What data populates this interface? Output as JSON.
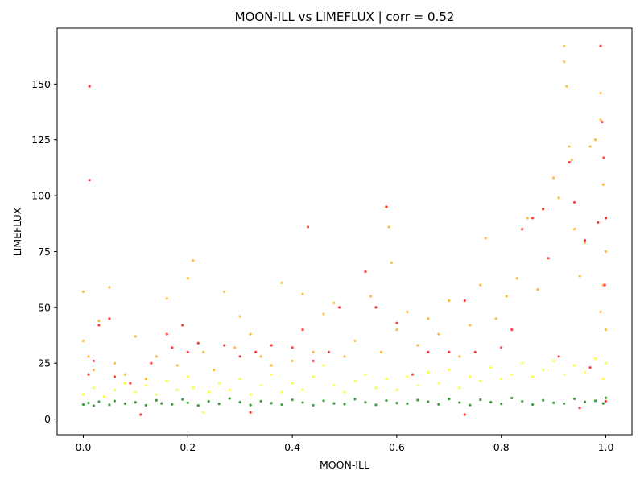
{
  "chart_data": {
    "type": "scatter",
    "title": "MOON-ILL vs LIMEFLUX | corr = 0.52",
    "xlabel": "MOON-ILL",
    "ylabel": "LIMEFLUX",
    "xlim": [
      -0.05,
      1.05
    ],
    "ylim": [
      -7,
      175
    ],
    "xticks": [
      0.0,
      0.2,
      0.4,
      0.6,
      0.8,
      1.0
    ],
    "xtick_labels": [
      "0.0",
      "0.2",
      "0.4",
      "0.6",
      "0.8",
      "1.0"
    ],
    "yticks": [
      0,
      25,
      50,
      75,
      100,
      125,
      150
    ],
    "ytick_labels": [
      "0",
      "25",
      "50",
      "75",
      "100",
      "125",
      "150"
    ],
    "grid": false,
    "legend": "none",
    "series": [
      {
        "color": "#008000",
        "points": [
          [
            0.0,
            6.5
          ],
          [
            0.01,
            7.2
          ],
          [
            0.02,
            6.0
          ],
          [
            0.03,
            7.8
          ],
          [
            0.05,
            6.4
          ],
          [
            0.06,
            8.1
          ],
          [
            0.08,
            6.9
          ],
          [
            0.1,
            7.5
          ],
          [
            0.12,
            6.2
          ],
          [
            0.14,
            8.4
          ],
          [
            0.15,
            7.0
          ],
          [
            0.17,
            6.6
          ],
          [
            0.19,
            8.8
          ],
          [
            0.2,
            7.3
          ],
          [
            0.22,
            6.1
          ],
          [
            0.24,
            7.9
          ],
          [
            0.26,
            6.8
          ],
          [
            0.28,
            9.2
          ],
          [
            0.3,
            7.6
          ],
          [
            0.32,
            6.3
          ],
          [
            0.34,
            8.0
          ],
          [
            0.36,
            7.1
          ],
          [
            0.38,
            6.5
          ],
          [
            0.4,
            8.6
          ],
          [
            0.42,
            7.4
          ],
          [
            0.44,
            6.2
          ],
          [
            0.46,
            8.2
          ],
          [
            0.48,
            7.0
          ],
          [
            0.5,
            6.7
          ],
          [
            0.52,
            8.9
          ],
          [
            0.54,
            7.5
          ],
          [
            0.56,
            6.4
          ],
          [
            0.58,
            8.3
          ],
          [
            0.6,
            7.2
          ],
          [
            0.62,
            6.9
          ],
          [
            0.64,
            8.5
          ],
          [
            0.66,
            7.8
          ],
          [
            0.68,
            6.6
          ],
          [
            0.7,
            9.0
          ],
          [
            0.72,
            7.4
          ],
          [
            0.74,
            6.3
          ],
          [
            0.76,
            8.7
          ],
          [
            0.78,
            7.6
          ],
          [
            0.8,
            6.8
          ],
          [
            0.82,
            9.4
          ],
          [
            0.84,
            7.9
          ],
          [
            0.86,
            6.5
          ],
          [
            0.88,
            8.4
          ],
          [
            0.9,
            7.3
          ],
          [
            0.92,
            6.9
          ],
          [
            0.94,
            9.1
          ],
          [
            0.96,
            7.7
          ],
          [
            0.98,
            8.2
          ],
          [
            1.0,
            9.5
          ],
          [
            0.995,
            7.0
          ]
        ]
      },
      {
        "color": "#ffff00",
        "points": [
          [
            0.0,
            11
          ],
          [
            0.02,
            14
          ],
          [
            0.04,
            10
          ],
          [
            0.06,
            13
          ],
          [
            0.08,
            16
          ],
          [
            0.1,
            12
          ],
          [
            0.12,
            15
          ],
          [
            0.14,
            11
          ],
          [
            0.16,
            17
          ],
          [
            0.18,
            13
          ],
          [
            0.2,
            19
          ],
          [
            0.21,
            14
          ],
          [
            0.23,
            3
          ],
          [
            0.24,
            12
          ],
          [
            0.26,
            16
          ],
          [
            0.28,
            13
          ],
          [
            0.3,
            18
          ],
          [
            0.32,
            11
          ],
          [
            0.34,
            15
          ],
          [
            0.36,
            20
          ],
          [
            0.38,
            12
          ],
          [
            0.4,
            16
          ],
          [
            0.42,
            13
          ],
          [
            0.44,
            19
          ],
          [
            0.46,
            24
          ],
          [
            0.48,
            15
          ],
          [
            0.5,
            12
          ],
          [
            0.52,
            17
          ],
          [
            0.54,
            20
          ],
          [
            0.56,
            14
          ],
          [
            0.58,
            18
          ],
          [
            0.6,
            13
          ],
          [
            0.62,
            19
          ],
          [
            0.64,
            15
          ],
          [
            0.66,
            21
          ],
          [
            0.68,
            16
          ],
          [
            0.7,
            22
          ],
          [
            0.72,
            14
          ],
          [
            0.74,
            19
          ],
          [
            0.76,
            17
          ],
          [
            0.78,
            23
          ],
          [
            0.8,
            18
          ],
          [
            0.82,
            20
          ],
          [
            0.84,
            25
          ],
          [
            0.86,
            19
          ],
          [
            0.88,
            22
          ],
          [
            0.9,
            26
          ],
          [
            0.92,
            20
          ],
          [
            0.94,
            24
          ],
          [
            0.96,
            21
          ],
          [
            0.98,
            27
          ],
          [
            1.0,
            25
          ],
          [
            0.995,
            18
          ]
        ]
      },
      {
        "color": "#ffa500",
        "points": [
          [
            0.0,
            57
          ],
          [
            0.0,
            35
          ],
          [
            0.01,
            28
          ],
          [
            0.02,
            22
          ],
          [
            0.03,
            44
          ],
          [
            0.05,
            59
          ],
          [
            0.06,
            25
          ],
          [
            0.08,
            20
          ],
          [
            0.1,
            37
          ],
          [
            0.12,
            18
          ],
          [
            0.14,
            28
          ],
          [
            0.16,
            54
          ],
          [
            0.18,
            24
          ],
          [
            0.2,
            63
          ],
          [
            0.21,
            71
          ],
          [
            0.23,
            30
          ],
          [
            0.25,
            22
          ],
          [
            0.27,
            57
          ],
          [
            0.29,
            32
          ],
          [
            0.3,
            46
          ],
          [
            0.32,
            38
          ],
          [
            0.34,
            28
          ],
          [
            0.36,
            24
          ],
          [
            0.38,
            61
          ],
          [
            0.4,
            26
          ],
          [
            0.42,
            56
          ],
          [
            0.44,
            30
          ],
          [
            0.46,
            47
          ],
          [
            0.48,
            52
          ],
          [
            0.5,
            28
          ],
          [
            0.52,
            35
          ],
          [
            0.55,
            55
          ],
          [
            0.57,
            30
          ],
          [
            0.58,
            95
          ],
          [
            0.585,
            86
          ],
          [
            0.59,
            70
          ],
          [
            0.6,
            40
          ],
          [
            0.62,
            48
          ],
          [
            0.64,
            33
          ],
          [
            0.66,
            45
          ],
          [
            0.68,
            38
          ],
          [
            0.7,
            53
          ],
          [
            0.72,
            28
          ],
          [
            0.74,
            42
          ],
          [
            0.76,
            60
          ],
          [
            0.77,
            81
          ],
          [
            0.79,
            45
          ],
          [
            0.81,
            55
          ],
          [
            0.83,
            63
          ],
          [
            0.85,
            90
          ],
          [
            0.87,
            58
          ],
          [
            0.88,
            94
          ],
          [
            0.9,
            108
          ],
          [
            0.91,
            99
          ],
          [
            0.92,
            167
          ],
          [
            0.92,
            160
          ],
          [
            0.925,
            149
          ],
          [
            0.93,
            122
          ],
          [
            0.935,
            116
          ],
          [
            0.94,
            85
          ],
          [
            0.95,
            64
          ],
          [
            0.96,
            79
          ],
          [
            0.97,
            122
          ],
          [
            0.98,
            125
          ],
          [
            0.99,
            146
          ],
          [
            0.99,
            134
          ],
          [
            0.995,
            105
          ],
          [
            1.0,
            90
          ],
          [
            1.0,
            75
          ],
          [
            0.995,
            60
          ],
          [
            0.99,
            48
          ],
          [
            1.0,
            40
          ]
        ]
      },
      {
        "color": "#ff0000",
        "points": [
          [
            0.012,
            149
          ],
          [
            0.012,
            107
          ],
          [
            0.01,
            20
          ],
          [
            0.02,
            26
          ],
          [
            0.03,
            42
          ],
          [
            0.05,
            45
          ],
          [
            0.06,
            19
          ],
          [
            0.09,
            16
          ],
          [
            0.11,
            2
          ],
          [
            0.13,
            25
          ],
          [
            0.16,
            38
          ],
          [
            0.17,
            32
          ],
          [
            0.19,
            42
          ],
          [
            0.2,
            30
          ],
          [
            0.22,
            34
          ],
          [
            0.27,
            33
          ],
          [
            0.3,
            28
          ],
          [
            0.32,
            3
          ],
          [
            0.33,
            30
          ],
          [
            0.36,
            33
          ],
          [
            0.4,
            32
          ],
          [
            0.42,
            40
          ],
          [
            0.43,
            86
          ],
          [
            0.44,
            26
          ],
          [
            0.47,
            30
          ],
          [
            0.49,
            50
          ],
          [
            0.54,
            66
          ],
          [
            0.56,
            50
          ],
          [
            0.58,
            95
          ],
          [
            0.6,
            43
          ],
          [
            0.63,
            20
          ],
          [
            0.66,
            30
          ],
          [
            0.7,
            30
          ],
          [
            0.73,
            53
          ],
          [
            0.73,
            2
          ],
          [
            0.75,
            30
          ],
          [
            0.8,
            32
          ],
          [
            0.82,
            40
          ],
          [
            0.84,
            85
          ],
          [
            0.86,
            90
          ],
          [
            0.88,
            94
          ],
          [
            0.89,
            72
          ],
          [
            0.91,
            28
          ],
          [
            0.93,
            115
          ],
          [
            0.94,
            97
          ],
          [
            0.95,
            5
          ],
          [
            0.96,
            80
          ],
          [
            0.97,
            23
          ],
          [
            0.985,
            88
          ],
          [
            0.99,
            167
          ],
          [
            0.993,
            133
          ],
          [
            0.996,
            117
          ],
          [
            1.0,
            90
          ],
          [
            0.998,
            60
          ],
          [
            1.0,
            8
          ]
        ]
      }
    ]
  }
}
